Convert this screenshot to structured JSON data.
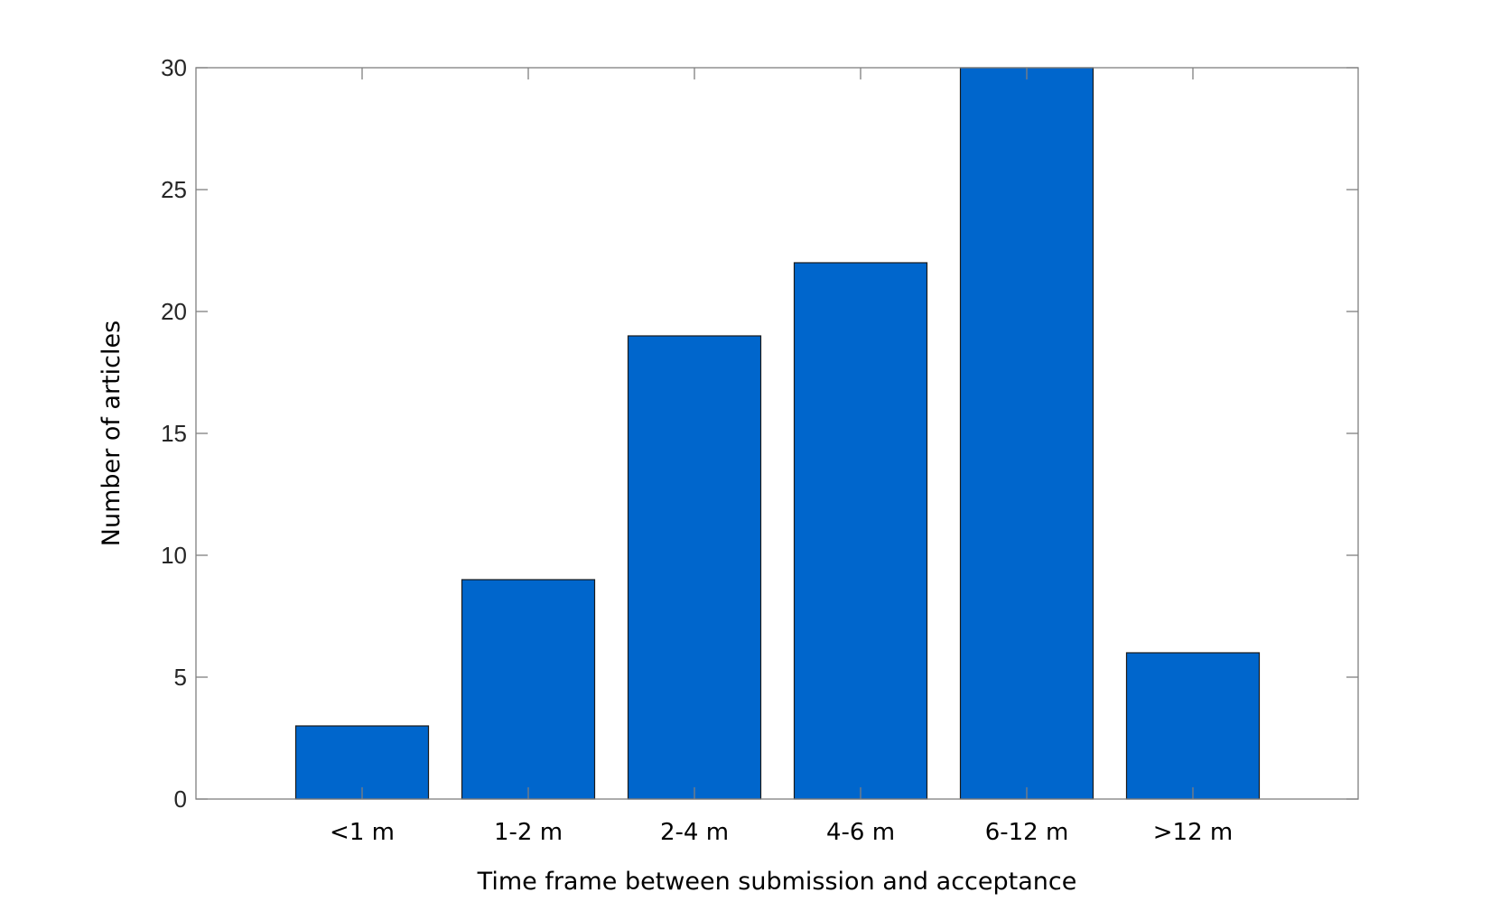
{
  "chart_data": {
    "type": "bar",
    "categories": [
      "<1 m",
      "1-2 m",
      "2-4 m",
      "4-6 m",
      "6-12 m",
      ">12 m"
    ],
    "values": [
      3,
      9,
      19,
      22,
      30,
      6
    ],
    "xlabel": "Time frame between submission and acceptance",
    "ylabel": "Number of articles",
    "ylim": [
      0,
      30
    ],
    "yticks": [
      0,
      5,
      10,
      15,
      20,
      25,
      30
    ],
    "yticks_labels": [
      "0",
      "5",
      "10",
      "15",
      "20",
      "25",
      "30"
    ],
    "grid": false,
    "legend": "none",
    "bar_color": "#0066CC",
    "bar_edge_color": "#1a1a1a",
    "axes_color": "#808080",
    "background": "#ffffff"
  }
}
